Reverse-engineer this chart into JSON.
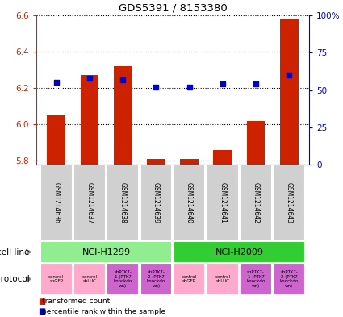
{
  "title": "GDS5391 / 8153380",
  "samples": [
    "GSM1214636",
    "GSM1214637",
    "GSM1214638",
    "GSM1214639",
    "GSM1214640",
    "GSM1214641",
    "GSM1214642",
    "GSM1214643"
  ],
  "transformed_count": [
    6.05,
    6.27,
    6.32,
    5.81,
    5.81,
    5.86,
    6.02,
    6.58
  ],
  "bar_bottom": 5.78,
  "percentile_rank": [
    55,
    58,
    57,
    52,
    52,
    54,
    54,
    60
  ],
  "ylim_left": [
    5.78,
    6.6
  ],
  "ylim_right": [
    0,
    100
  ],
  "yticks_left": [
    5.8,
    6.0,
    6.2,
    6.4,
    6.6
  ],
  "yticks_right": [
    0,
    25,
    50,
    75,
    100
  ],
  "ytick_labels_right": [
    "0",
    "25",
    "50",
    "75",
    "100%"
  ],
  "cell_line_groups": [
    {
      "label": "NCI-H1299",
      "start": 0,
      "end": 3,
      "color": "#90ee90"
    },
    {
      "label": "NCI-H2009",
      "start": 4,
      "end": 7,
      "color": "#32cd32"
    }
  ],
  "protocols": [
    {
      "label": "control\nshGFP",
      "color": "#ffaacc"
    },
    {
      "label": "control\nshLUC",
      "color": "#ffaacc"
    },
    {
      "label": "shPTK7-\n1 (PTK7\nknockdo\nwn)",
      "color": "#cc66cc"
    },
    {
      "label": "shPTK7-\n2 (PTK7\nknockdo\nwn)",
      "color": "#cc66cc"
    },
    {
      "label": "control\nshGFP",
      "color": "#ffaacc"
    },
    {
      "label": "control\nshLUC",
      "color": "#ffaacc"
    },
    {
      "label": "shPTK7-\n1 (PTK7\nknockdo\nwn)",
      "color": "#cc66cc"
    },
    {
      "label": "shPTK7-\n2 (PTK7\nknockdo\nwn)",
      "color": "#cc66cc"
    }
  ],
  "bar_color": "#cc2200",
  "dot_color": "#0000cc",
  "bar_width": 0.55,
  "dot_size": 18,
  "legend_bar_label": "transformed count",
  "legend_dot_label": "percentile rank within the sample",
  "cell_line_label": "cell line",
  "protocol_label": "protocol",
  "left_axis_color": "#cc2200",
  "right_axis_color": "#0000cc",
  "sample_box_color": "#d0d0d0",
  "n_samples": 8
}
